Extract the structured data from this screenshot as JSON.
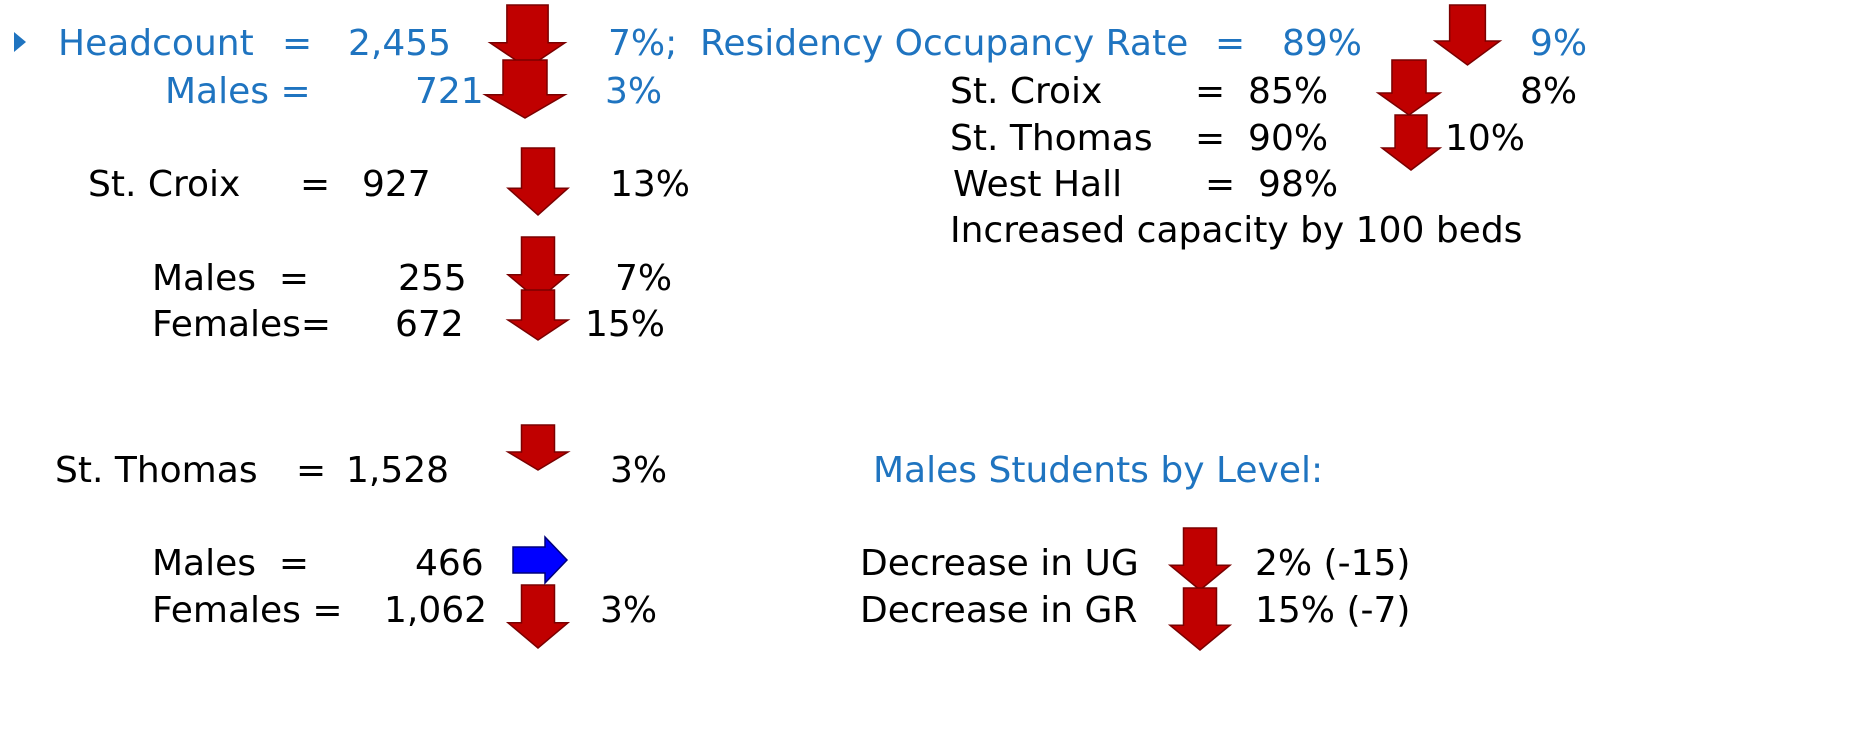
{
  "headcount": {
    "label": "Headcount",
    "eq": "=",
    "value": "2,455",
    "change": "7%;"
  },
  "residency": {
    "label": "Residency Occupancy Rate",
    "eq": "=",
    "value": "89%",
    "change": "9%",
    "items": [
      {
        "label": "St. Croix",
        "value": "=  85%",
        "change": "8%"
      },
      {
        "label": "St. Thomas",
        "value": "=  90%",
        "change": "10%"
      },
      {
        "label": "West Hall",
        "value": "=  98%"
      }
    ],
    "note": "Increased capacity by 100 beds"
  },
  "males_total": {
    "label": "Males =",
    "value": "721",
    "change": "3%"
  },
  "st_croix": {
    "label": "St. Croix",
    "eq": "=",
    "value": "927",
    "change": "13%",
    "males": {
      "label": "Males  =",
      "value": "255",
      "change": "7%"
    },
    "females": {
      "label": "Females=",
      "value": "672",
      "change": "15%"
    }
  },
  "st_thomas": {
    "label": "St. Thomas",
    "eq": "=",
    "value": "1,528",
    "change": "3%",
    "males": {
      "label": "Males  =",
      "value": "466"
    },
    "females": {
      "label": "Females =",
      "value": "1,062",
      "change": "3%"
    }
  },
  "male_levels": {
    "title": "Males Students by Level:",
    "items": [
      {
        "label": "Decrease in UG",
        "change": "2% (-15)"
      },
      {
        "label": "Decrease in GR",
        "change": "15% (-7)"
      }
    ]
  }
}
